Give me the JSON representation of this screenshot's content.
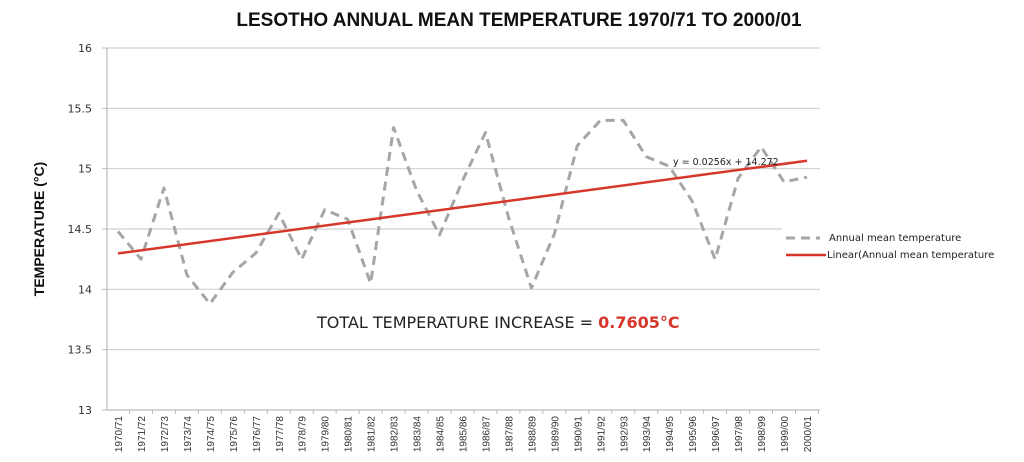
{
  "chart_data": {
    "type": "line",
    "title": "LESOTHO ANNUAL MEAN TEMPERATURE 1970/71 TO 2000/01",
    "xlabel": "",
    "ylabel": "TEMPERATURE (°C)",
    "ylim": [
      13,
      16
    ],
    "yticks": [
      "13",
      "13.5",
      "14",
      "14.5",
      "15",
      "15.5",
      "16"
    ],
    "ytick_values": [
      13,
      13.5,
      14,
      14.5,
      15,
      15.5,
      16
    ],
    "grid": true,
    "legend_position": "right",
    "categories": [
      "1970/71",
      "1971/72",
      "1972/73",
      "1973/74",
      "1974/75",
      "1975/76",
      "1976/77",
      "1977/78",
      "1978/79",
      "1979/80",
      "1980/81",
      "1981/82",
      "1982/83",
      "1983/84",
      "1984/85",
      "1985/86",
      "1986/87",
      "1987/88",
      "1988/89",
      "1989/90",
      "1990/91",
      "1991/92",
      "1992/93",
      "1993/94",
      "1994/95",
      "1995/96",
      "1996/97",
      "1997/98",
      "1998/99",
      "1999/00",
      "2000/01"
    ],
    "series": [
      {
        "name": "Annual mean temperature",
        "style": "dashed",
        "color": "#a6a6a6",
        "values": [
          14.48,
          14.25,
          14.84,
          14.12,
          13.88,
          14.14,
          14.3,
          14.63,
          14.25,
          14.66,
          14.58,
          14.05,
          15.34,
          14.82,
          14.45,
          14.9,
          15.3,
          14.6,
          14.01,
          14.46,
          15.19,
          15.4,
          15.4,
          15.1,
          15.02,
          14.73,
          14.25,
          14.92,
          15.18,
          14.89,
          14.93
        ]
      },
      {
        "name": "Linear(Annual mean temperature",
        "style": "solid",
        "color": "#d7362b",
        "trendline": {
          "slope": 0.0256,
          "intercept": 14.272
        }
      }
    ],
    "annotations": {
      "equation": "y = 0.0256x + 14.272",
      "note_prefix": "TOTAL TEMPERATURE INCREASE = ",
      "note_value": "0.7605°C"
    }
  }
}
